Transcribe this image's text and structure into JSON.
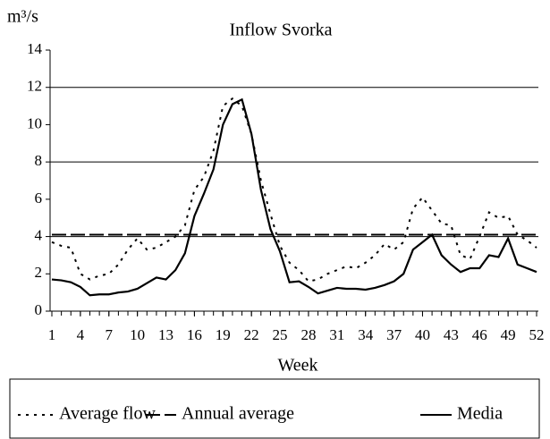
{
  "chart_data": {
    "type": "line",
    "title": "Inflow Svorka",
    "y_label": "m³/s",
    "x_label": "Week",
    "x": [
      1,
      2,
      3,
      4,
      5,
      6,
      7,
      8,
      9,
      10,
      11,
      12,
      13,
      14,
      15,
      16,
      17,
      18,
      19,
      20,
      21,
      22,
      23,
      24,
      25,
      26,
      27,
      28,
      29,
      30,
      31,
      32,
      33,
      34,
      35,
      36,
      37,
      38,
      39,
      40,
      41,
      42,
      43,
      44,
      45,
      46,
      47,
      48,
      49,
      50,
      51,
      52
    ],
    "series": [
      {
        "name": "Average flow",
        "color": "#000000",
        "dash": "dotted",
        "values": [
          3.7,
          3.5,
          3.4,
          2.0,
          1.7,
          1.9,
          2.0,
          2.5,
          3.3,
          3.9,
          3.3,
          3.4,
          3.7,
          4.0,
          4.6,
          6.5,
          7.2,
          8.6,
          11.0,
          11.4,
          11.0,
          9.5,
          7.0,
          5.2,
          3.5,
          2.6,
          2.2,
          1.6,
          1.7,
          2.0,
          2.2,
          2.4,
          2.3,
          2.6,
          3.0,
          3.6,
          3.3,
          3.7,
          5.5,
          6.1,
          5.4,
          4.7,
          4.6,
          3.0,
          2.8,
          4.0,
          5.3,
          5.0,
          5.1,
          4.1,
          3.8,
          3.4
        ]
      },
      {
        "name": "Annual average",
        "color": "#000000",
        "dash": "dashed",
        "values": [
          4.1,
          4.1,
          4.1,
          4.1,
          4.1,
          4.1,
          4.1,
          4.1,
          4.1,
          4.1,
          4.1,
          4.1,
          4.1,
          4.1,
          4.1,
          4.1,
          4.1,
          4.1,
          4.1,
          4.1,
          4.1,
          4.1,
          4.1,
          4.1,
          4.1,
          4.1,
          4.1,
          4.1,
          4.1,
          4.1,
          4.1,
          4.1,
          4.1,
          4.1,
          4.1,
          4.1,
          4.1,
          4.1,
          4.1,
          4.1,
          4.1,
          4.1,
          4.1,
          4.1,
          4.1,
          4.1,
          4.1,
          4.1,
          4.1,
          4.1,
          4.1,
          4.1
        ]
      },
      {
        "name": "Media",
        "color": "#000000",
        "dash": "solid",
        "values": [
          1.7,
          1.65,
          1.55,
          1.3,
          0.85,
          0.9,
          0.9,
          1.0,
          1.05,
          1.2,
          1.5,
          1.8,
          1.7,
          2.2,
          3.1,
          5.1,
          6.3,
          7.6,
          10.0,
          11.1,
          11.35,
          9.5,
          6.5,
          4.4,
          3.2,
          1.55,
          1.6,
          1.3,
          0.95,
          1.1,
          1.25,
          1.2,
          1.2,
          1.15,
          1.25,
          1.4,
          1.6,
          2.0,
          3.3,
          3.7,
          4.1,
          3.0,
          2.5,
          2.1,
          2.3,
          2.3,
          3.0,
          2.9,
          3.9,
          2.5,
          2.3,
          2.1
        ]
      }
    ],
    "xlim": [
      1,
      52
    ],
    "xticks": [
      1,
      4,
      7,
      10,
      13,
      16,
      19,
      22,
      25,
      28,
      31,
      34,
      37,
      40,
      43,
      46,
      49,
      52
    ],
    "ylim": [
      0,
      14
    ],
    "yticks": [
      0,
      2,
      4,
      6,
      8,
      10,
      12,
      14
    ],
    "ygrid": [
      4,
      8,
      12
    ],
    "legend": "bottom"
  }
}
